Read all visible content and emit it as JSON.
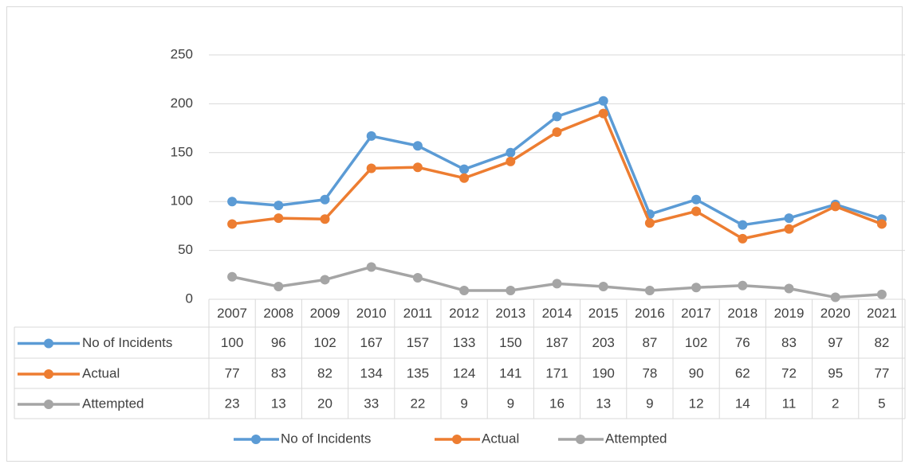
{
  "chart_data": {
    "type": "line",
    "categories": [
      "2007",
      "2008",
      "2009",
      "2010",
      "2011",
      "2012",
      "2013",
      "2014",
      "2015",
      "2016",
      "2017",
      "2018",
      "2019",
      "2020",
      "2021"
    ],
    "series": [
      {
        "name": "No of Incidents",
        "color": "#5b9bd5",
        "values": [
          100,
          96,
          102,
          167,
          157,
          133,
          150,
          187,
          203,
          87,
          102,
          76,
          83,
          97,
          82
        ]
      },
      {
        "name": "Actual",
        "color": "#ed7d31",
        "values": [
          77,
          83,
          82,
          134,
          135,
          124,
          141,
          171,
          190,
          78,
          90,
          62,
          72,
          95,
          77
        ]
      },
      {
        "name": "Attempted",
        "color": "#a5a5a5",
        "values": [
          23,
          13,
          20,
          33,
          22,
          9,
          9,
          16,
          13,
          9,
          12,
          14,
          11,
          2,
          5
        ]
      }
    ],
    "ylim": [
      0,
      250
    ],
    "yticks": [
      0,
      50,
      100,
      150,
      200,
      250
    ],
    "grid": true,
    "legend": "bottom",
    "data_table": true
  }
}
